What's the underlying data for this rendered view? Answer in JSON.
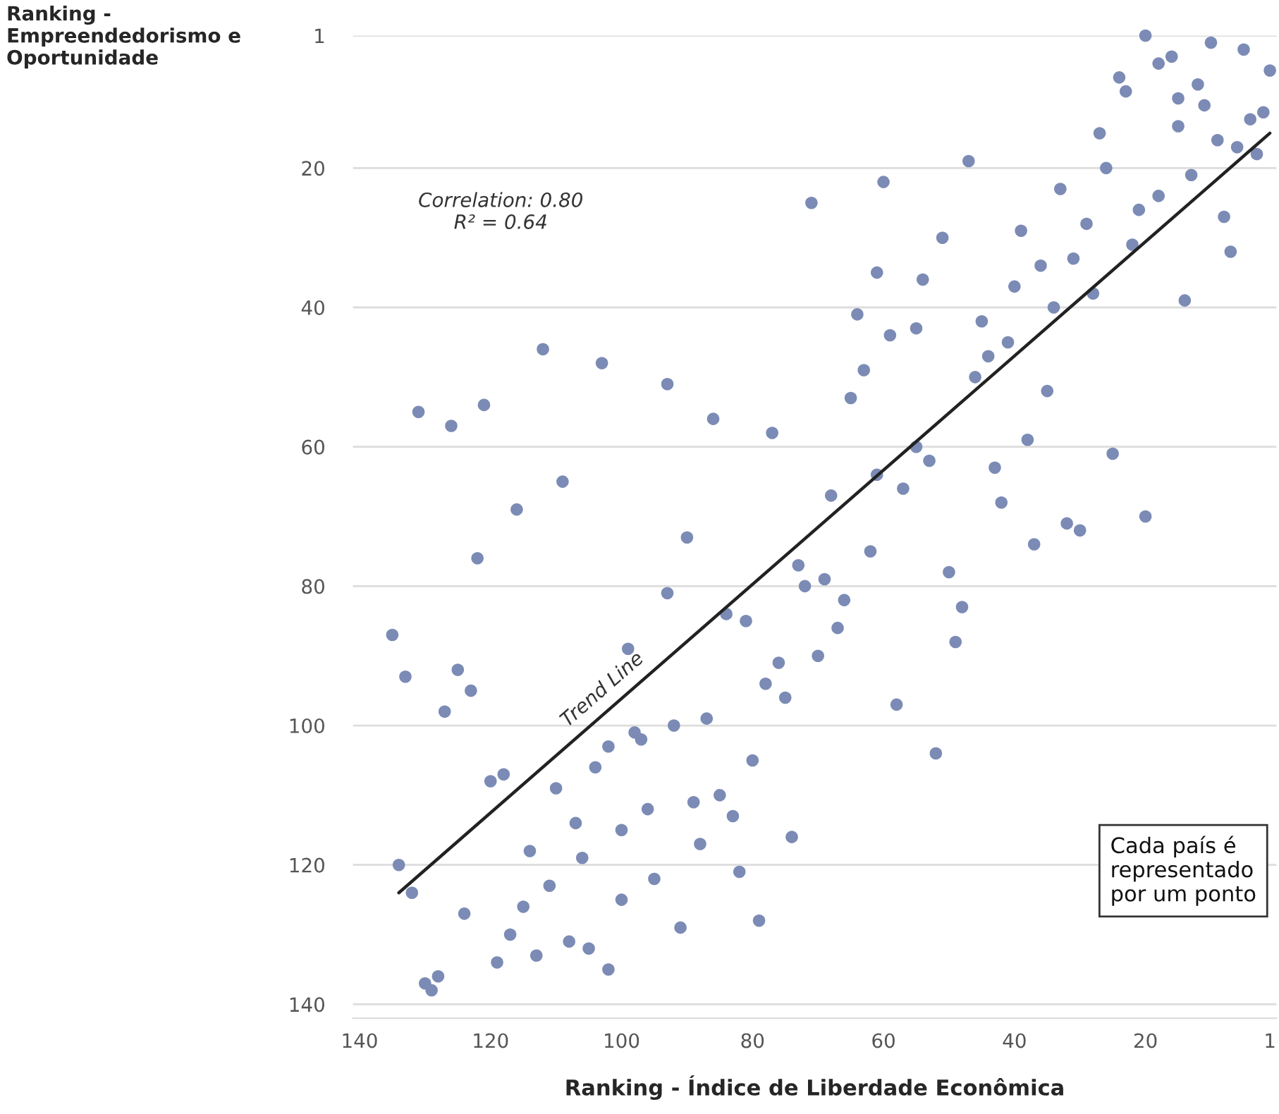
{
  "chart_data": {
    "type": "scatter",
    "xlabel": "Ranking - Índice de Liberdade Econômica",
    "ylabel": "Ranking -\nEmpreendedorismo e\nOportunidade",
    "xlim": [
      141,
      0
    ],
    "ylim": [
      142,
      1
    ],
    "xticks": [
      140,
      120,
      100,
      80,
      60,
      40,
      20,
      1
    ],
    "yticks": [
      1,
      20,
      40,
      60,
      80,
      100,
      120,
      140
    ],
    "grid": "y",
    "legend": false,
    "annotations": [
      "Correlation: 0.80\nR² = 0.64",
      "Cada país é\nrepresentado\npor um ponto"
    ],
    "series": [
      {
        "marker": "circle",
        "color": "#7b8bb5",
        "x": [
          20,
          10,
          5,
          18,
          16,
          1,
          24,
          23,
          12,
          15,
          11,
          2,
          4,
          15,
          27,
          9,
          6,
          3,
          47,
          26,
          13,
          33,
          18,
          21,
          8,
          39,
          29,
          7,
          22,
          36,
          31,
          40,
          28,
          34,
          14,
          45,
          41,
          44,
          46,
          35,
          38,
          25,
          43,
          42,
          20,
          60,
          71,
          51,
          61,
          54,
          64,
          59,
          55,
          63,
          93,
          65,
          86,
          77,
          55,
          53,
          61,
          57,
          68,
          112,
          103,
          131,
          126,
          121,
          109,
          116,
          122,
          135,
          133,
          125,
          123,
          127,
          99,
          98,
          97,
          102,
          104,
          120,
          118,
          110,
          107,
          96,
          100,
          114,
          106,
          134,
          132,
          95,
          111,
          124,
          115,
          100,
          117,
          108,
          105,
          119,
          113,
          102,
          130,
          129,
          128,
          90,
          93,
          73,
          72,
          69,
          62,
          66,
          84,
          81,
          67,
          70,
          76,
          78,
          75,
          50,
          48,
          49,
          58,
          52,
          92,
          87,
          80,
          89,
          85,
          83,
          88,
          74,
          82,
          91,
          79,
          37,
          32,
          30
        ],
        "values": [
          1,
          2,
          3,
          5,
          4,
          6,
          7,
          9,
          8,
          10,
          11,
          12,
          13,
          14,
          15,
          16,
          17,
          18,
          19,
          20,
          21,
          23,
          24,
          26,
          27,
          29,
          28,
          32,
          31,
          34,
          33,
          37,
          38,
          40,
          39,
          42,
          45,
          47,
          50,
          52,
          59,
          61,
          63,
          68,
          70,
          22,
          25,
          30,
          35,
          36,
          41,
          44,
          43,
          49,
          51,
          53,
          56,
          58,
          60,
          62,
          64,
          66,
          67,
          46,
          48,
          55,
          57,
          54,
          65,
          69,
          76,
          87,
          93,
          92,
          95,
          98,
          89,
          101,
          102,
          103,
          106,
          108,
          107,
          109,
          114,
          112,
          115,
          118,
          119,
          120,
          124,
          122,
          123,
          127,
          126,
          125,
          130,
          131,
          132,
          134,
          133,
          135,
          137,
          138,
          136,
          73,
          81,
          77,
          80,
          79,
          75,
          82,
          84,
          85,
          86,
          90,
          91,
          94,
          96,
          78,
          83,
          88,
          97,
          104,
          100,
          99,
          105,
          111,
          110,
          113,
          117,
          116,
          121,
          129,
          128,
          74,
          71,
          72
        ]
      },
      {
        "type": "line",
        "name": "Trend Line",
        "color": "#222222",
        "x": [
          134,
          1
        ],
        "values": [
          124,
          15
        ]
      }
    ]
  }
}
